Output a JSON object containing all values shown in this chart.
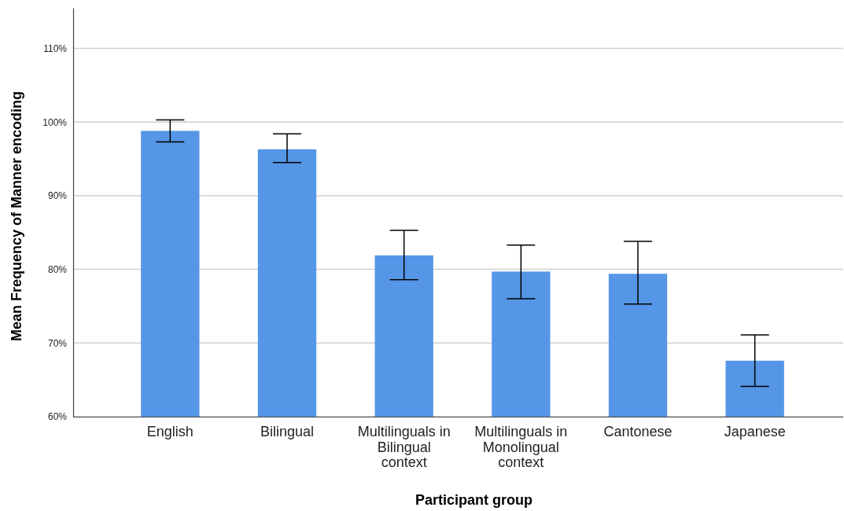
{
  "chart_data": {
    "type": "bar",
    "xlabel": "Participant group",
    "ylabel": "Mean Frequency of Manner encoding",
    "categories": [
      "English",
      "Bilingual",
      "Multilinguals in Bilingual context",
      "Multilinguals in Monolingual context",
      "Cantonese",
      "Japanese"
    ],
    "values": [
      98.8,
      96.3,
      81.9,
      79.7,
      79.4,
      67.6
    ],
    "errors": [
      [
        97.3,
        100.3
      ],
      [
        94.5,
        98.4
      ],
      [
        78.6,
        85.3
      ],
      [
        76.0,
        83.3
      ],
      [
        75.3,
        83.8
      ],
      [
        64.1,
        71.1
      ]
    ],
    "color": "#5596e6",
    "ylim": [
      60,
      115.5
    ],
    "yticks": [
      {
        "value": 60,
        "label": "60%"
      },
      {
        "value": 70,
        "label": "70%"
      },
      {
        "value": 80,
        "label": "80%"
      },
      {
        "value": 90,
        "label": "90%"
      },
      {
        "value": 100,
        "label": "100%"
      },
      {
        "value": 110,
        "label": "110%"
      }
    ],
    "grid": "y"
  }
}
